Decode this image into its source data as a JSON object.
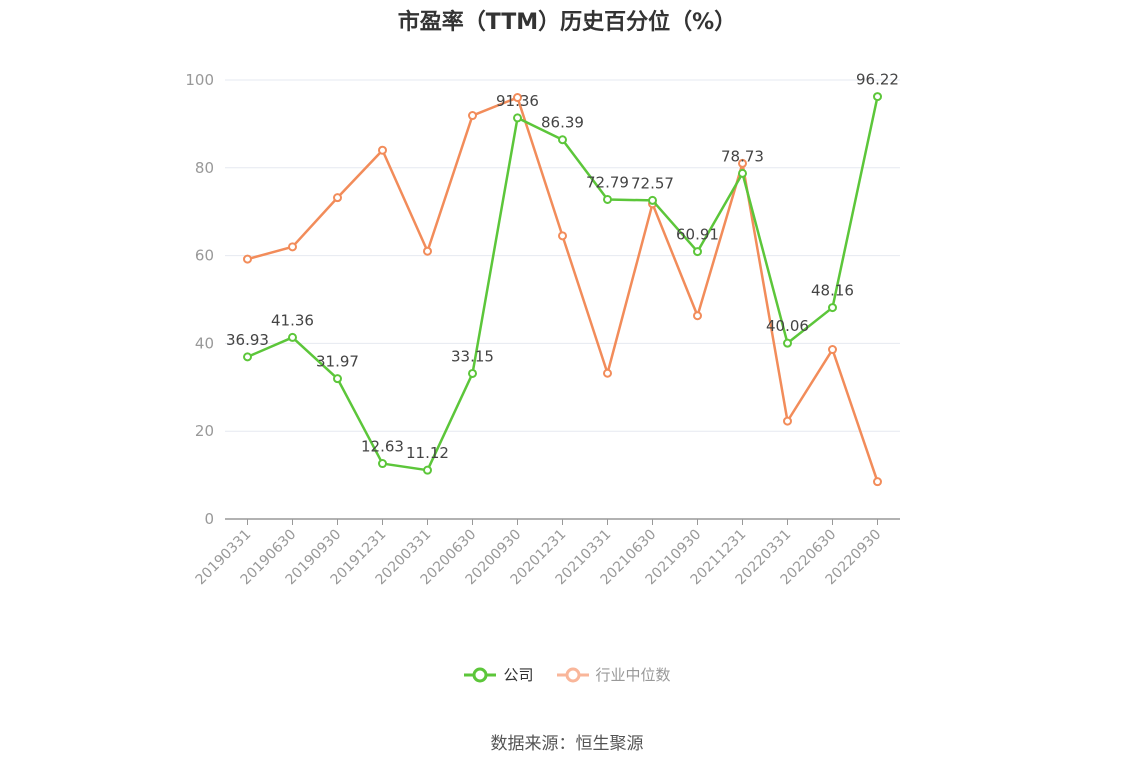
{
  "chart_data": {
    "type": "line",
    "title": "市盈率（TTM）历史百分位（%）",
    "xlabel": "",
    "ylabel": "",
    "ylim": [
      0,
      100
    ],
    "yticks": [
      0,
      20,
      40,
      60,
      80,
      100
    ],
    "grid": true,
    "legend_position": "bottom",
    "categories": [
      "20190331",
      "20190630",
      "20190930",
      "20191231",
      "20200331",
      "20200630",
      "20200930",
      "20201231",
      "20210331",
      "20210630",
      "20210930",
      "20211231",
      "20220331",
      "20220630",
      "20220930"
    ],
    "series": [
      {
        "name": "公司",
        "color": "#5cc63a",
        "values": [
          36.93,
          41.36,
          31.97,
          12.63,
          11.12,
          33.15,
          91.36,
          86.39,
          72.79,
          72.57,
          60.91,
          78.73,
          40.06,
          48.16,
          96.22
        ],
        "data_labels": [
          "36.93",
          "41.36",
          "31.97",
          "12.63",
          "11.12",
          "33.15",
          "91.36",
          "86.39",
          "72.79",
          "72.57",
          "60.91",
          "78.73",
          "40.06",
          "48.16",
          "96.22"
        ]
      },
      {
        "name": "行业中位数",
        "color": "#f28c5a",
        "values": [
          59.2,
          62.0,
          73.2,
          84.0,
          61.0,
          91.9,
          96.0,
          64.5,
          33.2,
          71.8,
          46.3,
          81.0,
          22.3,
          38.6,
          8.5
        ]
      }
    ]
  },
  "legend": {
    "company_label": "公司",
    "industry_label": "行业中位数",
    "company_color": "#5cc63a",
    "industry_color": "#f9b69a",
    "industry_text_color": "#999999",
    "company_text_color": "#333333"
  },
  "source_note": "数据来源：恒生聚源"
}
